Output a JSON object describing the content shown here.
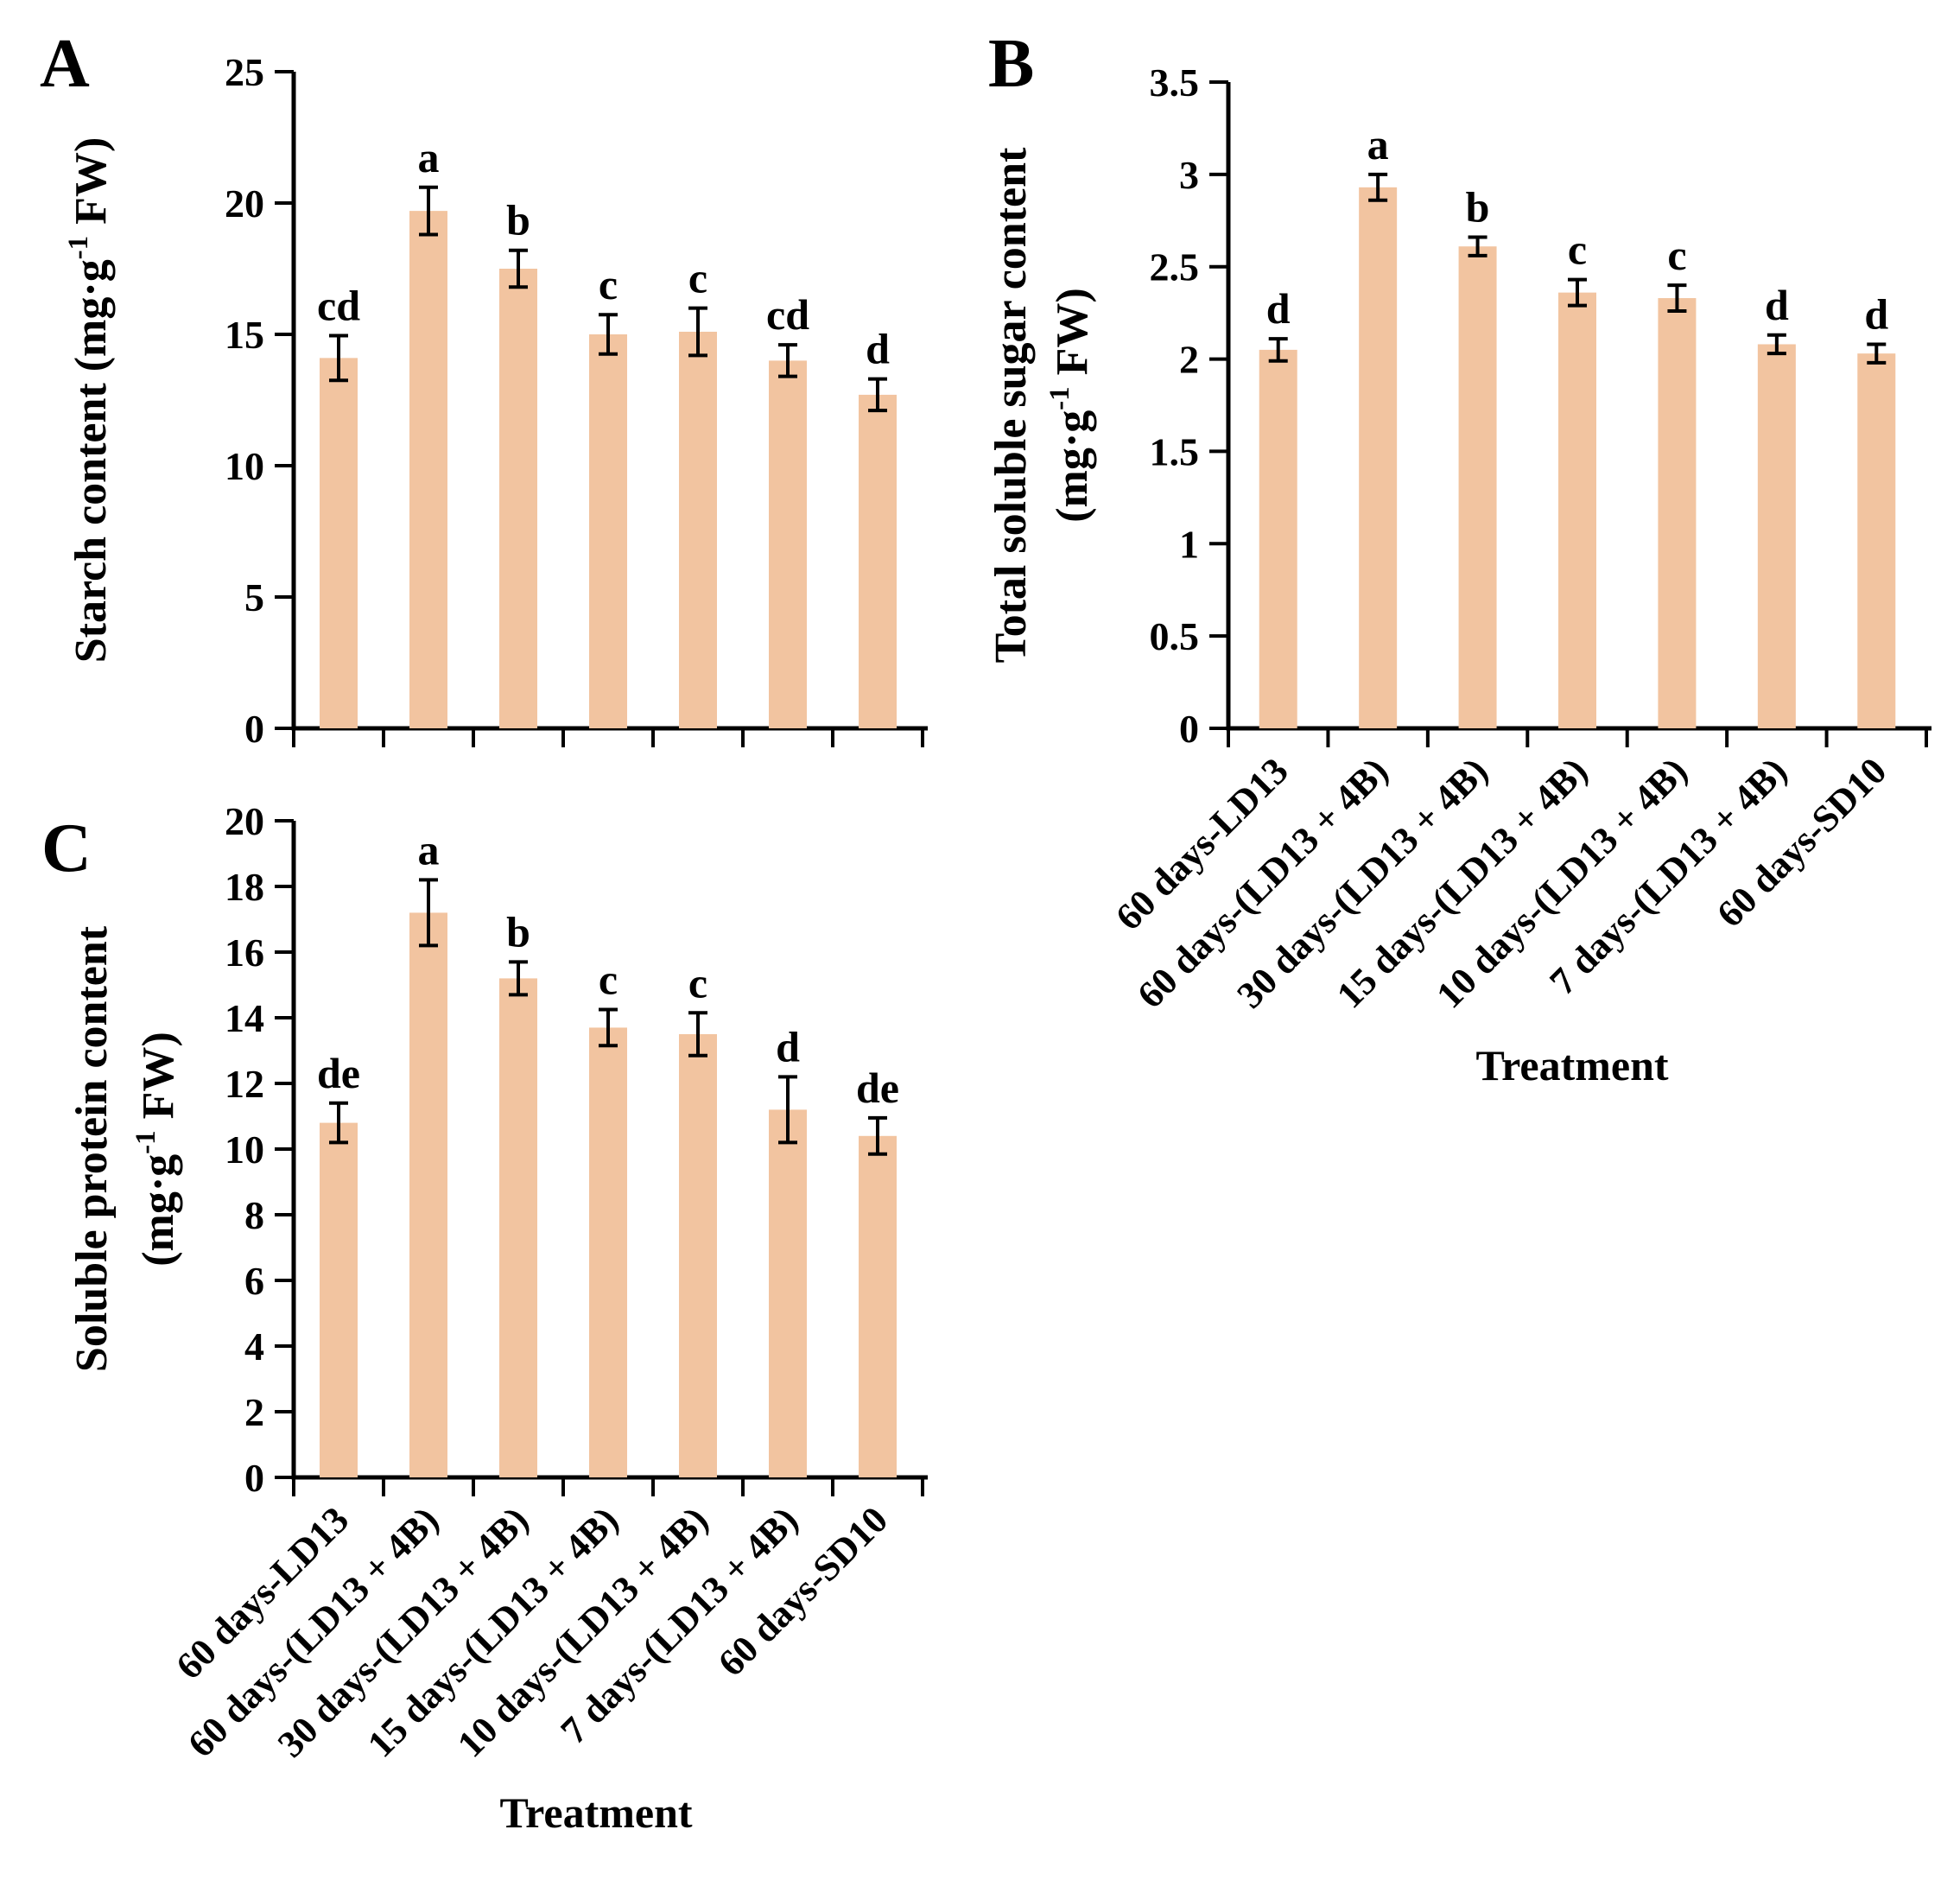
{
  "figure": {
    "background": "#ffffff",
    "bar_color": "#f2c4a0",
    "axis_color": "#000000",
    "text_color": "#000000"
  },
  "x_categories": [
    "60 days-LD13",
    "60 days-(LD13 + 4B)",
    "30 days-(LD13 + 4B)",
    "15 days-(LD13 + 4B)",
    "10 days-(LD13 + 4B)",
    "7 days-(LD13 + 4B)",
    "60 days-SD10"
  ],
  "x_axis_title": "Treatment",
  "chart_data": [
    {
      "type": "bar",
      "panel": "A",
      "panel_letter": "A",
      "ylabel": "Starch content (mg·g⁻¹ FW)",
      "ylabel_lines": [
        [
          {
            "t": "Starch content (mg·g"
          },
          {
            "t": "-1",
            "sup": true
          },
          {
            "t": " FW)"
          }
        ]
      ],
      "ylim": [
        0,
        25
      ],
      "ytick_step": 5,
      "ytick_labels": [
        "0",
        "5",
        "10",
        "15",
        "20",
        "25"
      ],
      "categories": [
        "60 days-LD13",
        "60 days-(LD13 + 4B)",
        "30 days-(LD13 + 4B)",
        "15 days-(LD13 + 4B)",
        "10 days-(LD13 + 4B)",
        "7 days-(LD13 + 4B)",
        "60 days-SD10"
      ],
      "values": [
        14.1,
        19.7,
        17.5,
        15.0,
        15.1,
        14.0,
        12.7
      ],
      "errors": [
        0.85,
        0.9,
        0.7,
        0.75,
        0.9,
        0.6,
        0.6
      ],
      "sig_letters": [
        "cd",
        "a",
        "b",
        "c",
        "c",
        "cd",
        "d"
      ],
      "grid": false,
      "legend": null,
      "show_x_labels": false,
      "show_x_title": false
    },
    {
      "type": "bar",
      "panel": "B",
      "panel_letter": "B",
      "ylabel": "Total soluble sugar content (mg·g⁻¹ FW)",
      "ylabel_lines": [
        [
          {
            "t": "Total soluble sugar content"
          }
        ],
        [
          {
            "t": "(mg·g"
          },
          {
            "t": "-1",
            "sup": true
          },
          {
            "t": " FW)"
          }
        ]
      ],
      "ylim": [
        0,
        3.5
      ],
      "ytick_step": 0.5,
      "ytick_labels": [
        "0",
        "0.5",
        "1",
        "1.5",
        "2",
        "2.5",
        "3",
        "3.5"
      ],
      "categories": [
        "60 days-LD13",
        "60 days-(LD13 + 4B)",
        "30 days-(LD13 + 4B)",
        "15 days-(LD13 + 4B)",
        "10 days-(LD13 + 4B)",
        "7 days-(LD13 + 4B)",
        "60 days-SD10"
      ],
      "values": [
        2.05,
        2.93,
        2.61,
        2.36,
        2.33,
        2.08,
        2.03
      ],
      "errors": [
        0.06,
        0.07,
        0.05,
        0.07,
        0.07,
        0.05,
        0.05
      ],
      "sig_letters": [
        "d",
        "a",
        "b",
        "c",
        "c",
        "d",
        "d"
      ],
      "grid": false,
      "legend": null,
      "show_x_labels": true,
      "show_x_title": true,
      "x_axis_title": "Treatment"
    },
    {
      "type": "bar",
      "panel": "C",
      "panel_letter": "C",
      "ylabel": "Soluble protein content (mg·g⁻¹ FW)",
      "ylabel_lines": [
        [
          {
            "t": "Soluble protein content"
          }
        ],
        [
          {
            "t": "(mg·g"
          },
          {
            "t": "-1",
            "sup": true
          },
          {
            "t": " FW)"
          }
        ]
      ],
      "ylim": [
        0,
        20
      ],
      "ytick_step": 2,
      "ytick_labels": [
        "0",
        "2",
        "4",
        "6",
        "8",
        "10",
        "12",
        "14",
        "16",
        "18",
        "20"
      ],
      "categories": [
        "60 days-LD13",
        "60 days-(LD13 + 4B)",
        "30 days-(LD13 + 4B)",
        "15 days-(LD13 + 4B)",
        "10 days-(LD13 + 4B)",
        "7 days-(LD13 + 4B)",
        "60 days-SD10"
      ],
      "values": [
        10.8,
        17.2,
        15.2,
        13.7,
        13.5,
        11.2,
        10.4
      ],
      "errors": [
        0.6,
        1.0,
        0.5,
        0.55,
        0.65,
        1.0,
        0.55
      ],
      "sig_letters": [
        "de",
        "a",
        "b",
        "c",
        "c",
        "d",
        "de"
      ],
      "grid": false,
      "legend": null,
      "show_x_labels": true,
      "show_x_title": true,
      "x_axis_title": "Treatment"
    }
  ]
}
